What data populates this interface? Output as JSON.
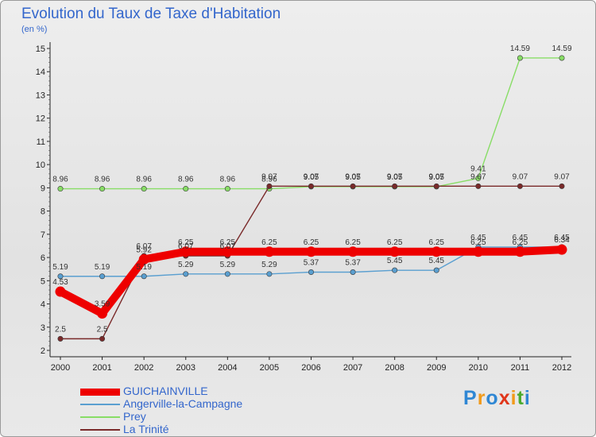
{
  "title": "Evolution du Taux de Taxe d'Habitation",
  "subtitle": "(en %)",
  "brand": {
    "letters": [
      "P",
      "r",
      "o",
      "x",
      "i",
      "t",
      "i"
    ],
    "colors": [
      "#2f87d4",
      "#f19a1a",
      "#2f87d4",
      "#e0361a",
      "#f19a1a",
      "#4aaa2e",
      "#2f87d4"
    ]
  },
  "chart_data": {
    "type": "line",
    "x": [
      "2000",
      "2001",
      "2002",
      "2003",
      "2004",
      "2005",
      "2006",
      "2007",
      "2008",
      "2009",
      "2010",
      "2011",
      "2012"
    ],
    "ylim": [
      2,
      15
    ],
    "yticks": [
      "2",
      "3",
      "4",
      "5",
      "6",
      "7",
      "8",
      "9",
      "10",
      "11",
      "12",
      "13",
      "14",
      "15"
    ],
    "grid": false,
    "legend_position": "bottom-left",
    "series": [
      {
        "name": "GUICHAINVILLE",
        "color": "#ee0000",
        "width": 10,
        "values": [
          4.53,
          3.59,
          5.92,
          6.25,
          6.25,
          6.25,
          6.25,
          6.25,
          6.25,
          6.25,
          6.25,
          6.25,
          6.34
        ],
        "labels": [
          "4.53",
          "3.59",
          "5.92",
          "6.25",
          "6.25",
          "6.25",
          "6.25",
          "6.25",
          "6.25",
          "6.25",
          "6.25",
          "6.25",
          "6.34"
        ]
      },
      {
        "name": "Angerville-la-Campagne",
        "color": "#5a9fd0",
        "width": 1.4,
        "values": [
          5.19,
          5.19,
          5.19,
          5.29,
          5.29,
          5.29,
          5.37,
          5.37,
          5.45,
          5.45,
          6.45,
          6.45,
          6.45
        ],
        "labels": [
          "5.19",
          "5.19",
          "5.19",
          "5.29",
          "5.29",
          "5.29",
          "5.37",
          "5.37",
          "5.45",
          "5.45",
          "6.45",
          "6.45",
          "6.45"
        ]
      },
      {
        "name": "Prey",
        "color": "#88dd66",
        "width": 1.4,
        "values": [
          8.96,
          8.96,
          8.96,
          8.96,
          8.96,
          8.96,
          9.05,
          9.05,
          9.05,
          9.05,
          9.41,
          14.59,
          14.59
        ],
        "labels": [
          "8.96",
          "8.96",
          "8.96",
          "8.96",
          "8.96",
          "8.96",
          "9.05",
          "9.05",
          "9.05",
          "9.05",
          "9.41",
          "14.59",
          "14.59"
        ]
      },
      {
        "name": "La Trinité",
        "color": "#7a2a2a",
        "width": 1.4,
        "values": [
          2.5,
          2.5,
          6.07,
          6.07,
          6.07,
          9.07,
          9.07,
          9.07,
          9.07,
          9.07,
          9.07,
          9.07,
          9.07
        ],
        "labels": [
          "2.5",
          "2.5",
          "6.07",
          "6.07",
          "6.07",
          "9.07",
          "9.07",
          "9.07",
          "9.07",
          "9.07",
          "9.07",
          "9.07",
          "9.07"
        ]
      }
    ]
  }
}
